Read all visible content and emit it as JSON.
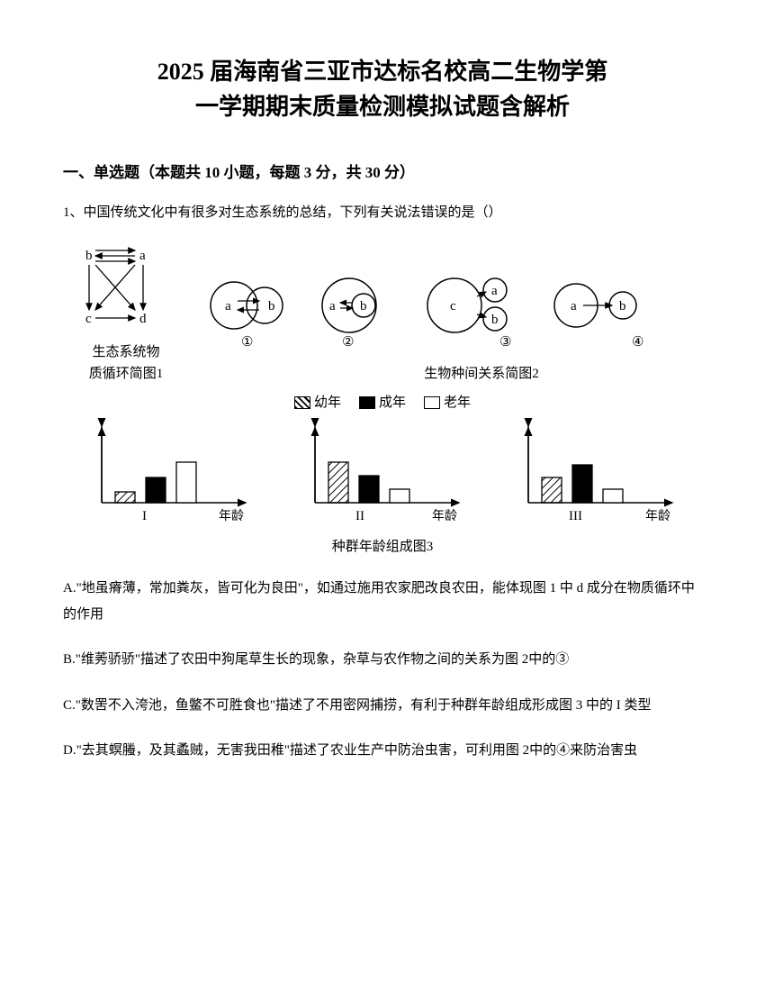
{
  "title_line1": "2025 届海南省三亚市达标名校高二生物学第",
  "title_line2": "一学期期末质量检测模拟试题含解析",
  "section1_header": "一、单选题（本题共 10 小题，每题 3 分，共 30 分）",
  "q1_text": "1、中国传统文化中有很多对生态系统的总结，下列有关说法错误的是（）",
  "fig1_label1": "生态系统物",
  "fig1_label2": "质循环简图1",
  "fig2_label": "生物种间关系简图2",
  "legend": {
    "young": "幼年",
    "adult": "成年",
    "old": "老年"
  },
  "fig3_label": "种群年龄组成图3",
  "nodes": {
    "a": "a",
    "b": "b",
    "c": "c",
    "d": "d"
  },
  "circles": {
    "1": "①",
    "2": "②",
    "3": "③",
    "4": "④"
  },
  "chart_labels": {
    "I": "I",
    "II": "II",
    "III": "III",
    "axis": "年龄"
  },
  "charts": {
    "colors": {
      "hatch_angle": 45,
      "border": "#000000",
      "bg": "#ffffff"
    },
    "I": {
      "bars": [
        12,
        28,
        45
      ]
    },
    "II": {
      "bars": [
        45,
        30,
        15
      ]
    },
    "III": {
      "bars": [
        28,
        42,
        15
      ]
    }
  },
  "options": {
    "A": "A.\"地虽瘠薄，常加粪灰，皆可化为良田\"，如通过施用农家肥改良农田，能体现图 1 中 d 成分在物质循环中的作用",
    "B": "B.\"维莠骄骄\"描述了农田中狗尾草生长的现象，杂草与农作物之间的关系为图 2中的③",
    "C": "C.\"数罟不入洿池，鱼鳖不可胜食也\"描述了不用密网捕捞，有利于种群年龄组成形成图 3 中的 I 类型",
    "D": "D.\"去其螟螣，及其蟊贼，无害我田稚\"描述了农业生产中防治虫害，可利用图 2中的④来防治害虫"
  }
}
